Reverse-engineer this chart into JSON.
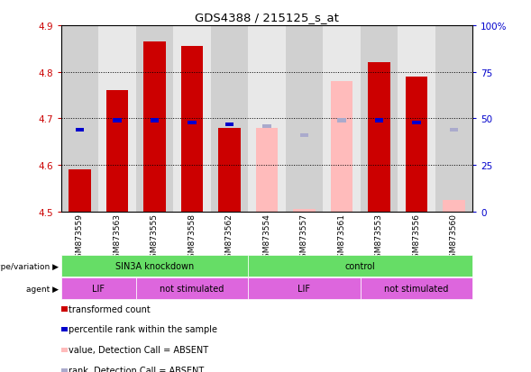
{
  "title": "GDS4388 / 215125_s_at",
  "samples": [
    "GSM873559",
    "GSM873563",
    "GSM873555",
    "GSM873558",
    "GSM873562",
    "GSM873554",
    "GSM873557",
    "GSM873561",
    "GSM873553",
    "GSM873556",
    "GSM873560"
  ],
  "ylim_left": [
    4.5,
    4.9
  ],
  "ylim_right": [
    0,
    100
  ],
  "yticks_left": [
    4.5,
    4.6,
    4.7,
    4.8,
    4.9
  ],
  "yticks_right": [
    0,
    25,
    50,
    75,
    100
  ],
  "ytick_labels_right": [
    "0",
    "25",
    "50",
    "75",
    "100%"
  ],
  "bar_base": 4.5,
  "bar_values": [
    4.59,
    4.76,
    4.865,
    4.855,
    4.68,
    null,
    null,
    null,
    4.82,
    4.79,
    null
  ],
  "bar_color_present": "#cc0000",
  "bar_color_absent": "#ffbbbb",
  "absent_bar_values": [
    null,
    null,
    null,
    null,
    null,
    4.68,
    4.505,
    4.78,
    null,
    null,
    4.525
  ],
  "percentile_present": [
    44,
    49,
    49,
    48,
    47,
    null,
    null,
    null,
    49,
    48,
    null
  ],
  "percentile_absent": [
    null,
    null,
    null,
    null,
    null,
    46,
    41,
    49,
    null,
    null,
    44
  ],
  "genotype_groups": [
    {
      "label": "SIN3A knockdown",
      "start": 0,
      "end": 4,
      "color": "#66dd66"
    },
    {
      "label": "control",
      "start": 5,
      "end": 10,
      "color": "#66dd66"
    }
  ],
  "agent_groups": [
    {
      "label": "LIF",
      "start": 0,
      "end": 1,
      "color": "#dd66dd"
    },
    {
      "label": "not stimulated",
      "start": 2,
      "end": 4,
      "color": "#dd66dd"
    },
    {
      "label": "LIF",
      "start": 5,
      "end": 7,
      "color": "#dd66dd"
    },
    {
      "label": "not stimulated",
      "start": 8,
      "end": 10,
      "color": "#dd66dd"
    }
  ],
  "legend_items": [
    {
      "label": "transformed count",
      "color": "#cc0000"
    },
    {
      "label": "percentile rank within the sample",
      "color": "#0000cc"
    },
    {
      "label": "value, Detection Call = ABSENT",
      "color": "#ffbbbb"
    },
    {
      "label": "rank, Detection Call = ABSENT",
      "color": "#aaaacc"
    }
  ],
  "col_colors": [
    "#d0d0d0",
    "#e8e8e8",
    "#d0d0d0",
    "#e8e8e8",
    "#d0d0d0",
    "#e8e8e8",
    "#d0d0d0",
    "#e8e8e8",
    "#d0d0d0",
    "#e8e8e8",
    "#d0d0d0"
  ]
}
